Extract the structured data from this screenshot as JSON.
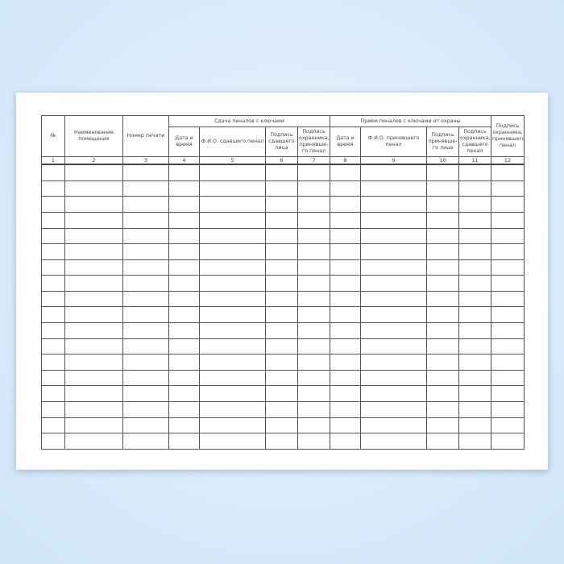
{
  "table": {
    "headers": {
      "no": "№",
      "room": "Наименование помещения",
      "seal": "Номер печати",
      "group1": "Сдача пеналов с ключами",
      "group2": "Прием пеналов с ключами от охраны",
      "c4": "Дата и время",
      "c5": "Ф.И.О. сдавшего пенал",
      "c6": "Подпись сдавшего лица",
      "c7": "Подпись охранника, принявше-го пенал",
      "c8": "Дата и время",
      "c9": "Ф.И.О. принявшего пенал",
      "c10": "Подпись принявше-го лица",
      "c11": "Подпись охранника, сдавшего пенал",
      "c12": "Подпись охранника, принявшего пенал"
    },
    "column_numbers": [
      "1",
      "2",
      "3",
      "4",
      "5",
      "6",
      "7",
      "8",
      "9",
      "10",
      "11",
      "12"
    ],
    "empty_rows": 18
  }
}
